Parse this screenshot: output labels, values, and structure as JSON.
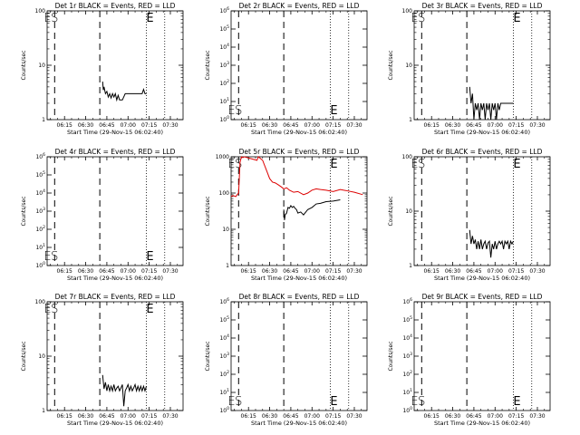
{
  "colors": {
    "events": "#000000",
    "lld": "#dd0000",
    "background": "#ffffff"
  },
  "chart_data": [
    {
      "title": "Det 1r BLACK = Events, RED = LLD",
      "type": "line",
      "scale": "log",
      "ylim": [
        1,
        100
      ],
      "ylabel": "Counts/sec",
      "xlabel": "Start Time (29-Nov-15 06:02:40)",
      "xticks": [
        "06:15",
        "06:30",
        "06:45",
        "07:00",
        "07:15",
        "07:30"
      ],
      "yticks": [
        {
          "v": 1,
          "label": "1"
        },
        {
          "v": 10,
          "label": "10"
        },
        {
          "v": 100,
          "label": "100"
        }
      ],
      "markers": [
        {
          "label": "E",
          "time": "06:03"
        },
        {
          "label": "S",
          "time": "06:08"
        }
      ],
      "end_marker": {
        "label": "E",
        "time": "07:13"
      },
      "dashed_lines": [
        "06:08",
        "06:40"
      ],
      "dotted_lines": [
        "07:13",
        "07:26"
      ],
      "series": [
        {
          "color": "black",
          "x": [
            "06:42",
            "06:42.5",
            "06:43",
            "06:44",
            "06:45",
            "06:46",
            "06:47",
            "06:48",
            "06:49",
            "06:50",
            "06:51",
            "06:52",
            "06:53",
            "06:54",
            "06:56",
            "06:58",
            "07:00",
            "07:02",
            "07:04",
            "07:06",
            "07:08",
            "07:10",
            "07:11",
            "07:12",
            "07:13"
          ],
          "y": [
            5,
            3.5,
            4,
            3,
            3.3,
            2.6,
            3,
            2.5,
            3,
            2.6,
            3,
            2.3,
            2.8,
            2.3,
            2.3,
            3,
            3,
            3,
            3,
            3,
            3,
            3,
            3.6,
            3,
            3
          ]
        }
      ]
    },
    {
      "title": "Det 2r BLACK = Events, RED = LLD",
      "type": "line",
      "scale": "log",
      "ylim": [
        1,
        1000000
      ],
      "ylabel": "Counts/sec",
      "xlabel": "Start Time (29-Nov-15 06:02:40)",
      "xticks": [
        "06:15",
        "06:30",
        "06:45",
        "07:00",
        "07:15",
        "07:30"
      ],
      "yticks": [
        {
          "v": 1,
          "label": "10^0"
        },
        {
          "v": 10,
          "label": "10^1"
        },
        {
          "v": 100,
          "label": "10^2"
        },
        {
          "v": 1000,
          "label": "10^3"
        },
        {
          "v": 10000,
          "label": "10^4"
        },
        {
          "v": 100000,
          "label": "10^5"
        },
        {
          "v": 1000000,
          "label": "10^6"
        }
      ],
      "markers": [
        {
          "label": "E",
          "time": "06:03"
        },
        {
          "label": "S",
          "time": "06:08"
        }
      ],
      "end_marker": {
        "label": "E",
        "time": "07:13"
      },
      "dashed_lines": [
        "06:08",
        "06:40"
      ],
      "dotted_lines": [
        "07:13",
        "07:26"
      ],
      "series": []
    },
    {
      "title": "Det 3r BLACK = Events, RED = LLD",
      "type": "line",
      "scale": "log",
      "ylim": [
        1,
        100
      ],
      "ylabel": "Counts/sec",
      "xlabel": "Start Time (29-Nov-15 06:02:40)",
      "xticks": [
        "06:15",
        "06:30",
        "06:45",
        "07:00",
        "07:15",
        "07:30"
      ],
      "yticks": [
        {
          "v": 1,
          "label": "1"
        },
        {
          "v": 10,
          "label": "10"
        },
        {
          "v": 100,
          "label": "100"
        }
      ],
      "markers": [
        {
          "label": "E",
          "time": "06:03"
        },
        {
          "label": "S",
          "time": "06:08"
        }
      ],
      "end_marker": {
        "label": "E",
        "time": "07:13"
      },
      "dashed_lines": [
        "06:08",
        "06:40"
      ],
      "dotted_lines": [
        "07:13",
        "07:26"
      ],
      "series": [
        {
          "color": "black",
          "x": [
            "06:42",
            "06:43",
            "06:44",
            "06:45",
            "06:46",
            "06:47",
            "06:48",
            "06:49",
            "06:50",
            "06:51",
            "06:52",
            "06:53",
            "06:54",
            "06:55",
            "06:56",
            "06:57",
            "06:58",
            "06:59",
            "07:00",
            "07:01",
            "07:02",
            "07:03",
            "07:04",
            "07:05",
            "07:06",
            "07:07",
            "07:08",
            "07:09",
            "07:10",
            "07:11",
            "07:12",
            "07:13"
          ],
          "y": [
            4,
            2,
            3,
            1,
            2,
            1.5,
            2,
            1,
            2,
            1.5,
            2,
            1,
            2,
            1.5,
            2,
            1,
            2,
            1.5,
            2,
            1,
            2,
            1.5,
            2,
            2,
            2,
            2,
            2,
            2,
            2,
            2,
            2,
            2
          ]
        }
      ]
    },
    {
      "title": "Det 4r BLACK = Events, RED = LLD",
      "type": "line",
      "scale": "log",
      "ylim": [
        1,
        1000000
      ],
      "ylabel": "Counts/sec",
      "xlabel": "Start Time (29-Nov-15 06:02:40)",
      "xticks": [
        "06:15",
        "06:30",
        "06:45",
        "07:00",
        "07:15",
        "07:30"
      ],
      "yticks": [
        {
          "v": 1,
          "label": "10^0"
        },
        {
          "v": 10,
          "label": "10^1"
        },
        {
          "v": 100,
          "label": "10^2"
        },
        {
          "v": 1000,
          "label": "10^3"
        },
        {
          "v": 10000,
          "label": "10^4"
        },
        {
          "v": 100000,
          "label": "10^5"
        },
        {
          "v": 1000000,
          "label": "10^6"
        }
      ],
      "markers": [
        {
          "label": "E",
          "time": "06:03"
        },
        {
          "label": "S",
          "time": "06:08"
        }
      ],
      "end_marker": {
        "label": "E",
        "time": "07:13"
      },
      "dashed_lines": [
        "06:08",
        "06:40"
      ],
      "dotted_lines": [
        "07:13",
        "07:26"
      ],
      "series": []
    },
    {
      "title": "Det 5r BLACK = Events, RED = LLD",
      "type": "line",
      "scale": "log",
      "ylim": [
        1,
        1000
      ],
      "ylabel": "Counts/sec",
      "xlabel": "Start Time (29-Nov-15 06:02:40)",
      "xticks": [
        "06:15",
        "06:30",
        "06:45",
        "07:00",
        "07:15",
        "07:30"
      ],
      "yticks": [
        {
          "v": 1,
          "label": "1"
        },
        {
          "v": 10,
          "label": "10"
        },
        {
          "v": 100,
          "label": "100"
        },
        {
          "v": 1000,
          "label": "1000"
        }
      ],
      "markers": [
        {
          "label": "E",
          "time": "06:03"
        },
        {
          "label": "S",
          "time": "06:08"
        }
      ],
      "end_marker": {
        "label": "E",
        "time": "07:13"
      },
      "dashed_lines": [
        "06:08",
        "06:40"
      ],
      "dotted_lines": [
        "07:13",
        "07:26"
      ],
      "series": [
        {
          "color": "red",
          "x": [
            "06:02.7",
            "06:04",
            "06:06",
            "06:07",
            "06:08",
            "06:09",
            "06:10",
            "06:11",
            "06:12",
            "06:21",
            "06:22",
            "06:25",
            "06:28",
            "06:30",
            "06:32",
            "06:34",
            "06:36",
            "06:38",
            "06:40",
            "06:42",
            "06:44",
            "06:47",
            "06:50",
            "06:54",
            "06:57",
            "07:00",
            "07:03",
            "07:06",
            "07:10",
            "07:15",
            "07:20",
            "07:25",
            "07:30",
            "07:36"
          ],
          "y": [
            80,
            85,
            80,
            90,
            100,
            700,
            1000,
            950,
            1000,
            800,
            1000,
            800,
            400,
            250,
            200,
            190,
            170,
            150,
            130,
            140,
            120,
            105,
            110,
            90,
            100,
            120,
            130,
            125,
            120,
            110,
            125,
            115,
            105,
            90
          ]
        },
        {
          "color": "black",
          "x": [
            "06:40",
            "06:40.5",
            "06:41",
            "06:42",
            "06:43",
            "06:44",
            "06:45",
            "06:46",
            "06:47",
            "06:48",
            "06:49",
            "06:50",
            "06:52",
            "06:54",
            "06:57",
            "07:00",
            "07:03",
            "07:06",
            "07:10",
            "07:15",
            "07:20"
          ],
          "y": [
            35,
            18,
            25,
            28,
            40,
            38,
            45,
            40,
            43,
            38,
            35,
            28,
            30,
            25,
            35,
            40,
            50,
            52,
            58,
            60,
            65
          ]
        }
      ]
    },
    {
      "title": "Det 6r BLACK = Events, RED = LLD",
      "type": "line",
      "scale": "log",
      "ylim": [
        1,
        100
      ],
      "ylabel": "Counts/sec",
      "xlabel": "Start Time (29-Nov-15 06:02:40)",
      "xticks": [
        "06:15",
        "06:30",
        "06:45",
        "07:00",
        "07:15",
        "07:30"
      ],
      "yticks": [
        {
          "v": 1,
          "label": "1"
        },
        {
          "v": 10,
          "label": "10"
        },
        {
          "v": 100,
          "label": "100"
        }
      ],
      "markers": [
        {
          "label": "E",
          "time": "06:03"
        },
        {
          "label": "S",
          "time": "06:08"
        }
      ],
      "end_marker": {
        "label": "E",
        "time": "07:13"
      },
      "dashed_lines": [
        "06:08",
        "06:40"
      ],
      "dotted_lines": [
        "07:13",
        "07:26"
      ],
      "series": [
        {
          "color": "black",
          "x": [
            "06:42",
            "06:43",
            "06:44",
            "06:45",
            "06:46",
            "06:47",
            "06:48",
            "06:49",
            "06:50",
            "06:51",
            "06:52",
            "06:53",
            "06:54",
            "06:55",
            "06:56",
            "06:57",
            "06:58",
            "06:59",
            "07:00",
            "07:01",
            "07:02",
            "07:03",
            "07:04",
            "07:05",
            "07:06",
            "07:07",
            "07:08",
            "07:09",
            "07:10",
            "07:11",
            "07:12",
            "07:13"
          ],
          "y": [
            4.5,
            2.5,
            3.5,
            2.5,
            3,
            2,
            2.8,
            2,
            3,
            2,
            2.5,
            2.8,
            2,
            2.6,
            2.8,
            1.4,
            2.5,
            2,
            2.8,
            2,
            2.5,
            2.8,
            2.5,
            2.8,
            2,
            2.8,
            2.5,
            2.8,
            2,
            2.8,
            2.5,
            2.8
          ]
        }
      ]
    },
    {
      "title": "Det 7r BLACK = Events, RED = LLD",
      "type": "line",
      "scale": "log",
      "ylim": [
        1,
        100
      ],
      "ylabel": "Counts/sec",
      "xlabel": "Start Time (29-Nov-15 06:02:40)",
      "xticks": [
        "06:15",
        "06:30",
        "06:45",
        "07:00",
        "07:15",
        "07:30"
      ],
      "yticks": [
        {
          "v": 1,
          "label": "1"
        },
        {
          "v": 10,
          "label": "10"
        },
        {
          "v": 100,
          "label": "100"
        }
      ],
      "markers": [
        {
          "label": "E",
          "time": "06:03"
        },
        {
          "label": "S",
          "time": "06:08"
        }
      ],
      "end_marker": {
        "label": "E",
        "time": "07:13"
      },
      "dashed_lines": [
        "06:08",
        "06:40"
      ],
      "dotted_lines": [
        "07:13",
        "07:26"
      ],
      "series": [
        {
          "color": "black",
          "x": [
            "06:42",
            "06:43",
            "06:44",
            "06:45",
            "06:46",
            "06:47",
            "06:48",
            "06:49",
            "06:50",
            "06:51",
            "06:52",
            "06:53",
            "06:54",
            "06:55",
            "06:56",
            "06:57",
            "06:58",
            "06:59",
            "07:00",
            "07:01",
            "07:02",
            "07:03",
            "07:04",
            "07:05",
            "07:06",
            "07:07",
            "07:08",
            "07:09",
            "07:10",
            "07:11",
            "07:12",
            "07:13"
          ],
          "y": [
            4.5,
            2.5,
            3.3,
            2.3,
            3,
            2.3,
            2.8,
            2.3,
            3,
            2.3,
            2.6,
            2.8,
            2.3,
            2.6,
            3,
            1.2,
            2.3,
            2.6,
            3,
            2.3,
            2.8,
            2.3,
            2.6,
            3,
            2.3,
            2.8,
            2.3,
            2.8,
            2.3,
            2.8,
            2.3,
            2.8
          ]
        }
      ]
    },
    {
      "title": "Det 8r BLACK = Events, RED = LLD",
      "type": "line",
      "scale": "log",
      "ylim": [
        1,
        1000000
      ],
      "ylabel": "Counts/sec",
      "xlabel": "Start Time (29-Nov-15 06:02:40)",
      "xticks": [
        "06:15",
        "06:30",
        "06:45",
        "07:00",
        "07:15",
        "07:30"
      ],
      "yticks": [
        {
          "v": 1,
          "label": "10^0"
        },
        {
          "v": 10,
          "label": "10^1"
        },
        {
          "v": 100,
          "label": "10^2"
        },
        {
          "v": 1000,
          "label": "10^3"
        },
        {
          "v": 10000,
          "label": "10^4"
        },
        {
          "v": 100000,
          "label": "10^5"
        },
        {
          "v": 1000000,
          "label": "10^6"
        }
      ],
      "markers": [
        {
          "label": "E",
          "time": "06:03"
        },
        {
          "label": "S",
          "time": "06:08"
        }
      ],
      "end_marker": {
        "label": "E",
        "time": "07:13"
      },
      "dashed_lines": [
        "06:08",
        "06:40"
      ],
      "dotted_lines": [
        "07:13",
        "07:26"
      ],
      "series": []
    },
    {
      "title": "Det 9r BLACK = Events, RED = LLD",
      "type": "line",
      "scale": "log",
      "ylim": [
        1,
        1000000
      ],
      "ylabel": "Counts/sec",
      "xlabel": "Start Time (29-Nov-15 06:02:40)",
      "xticks": [
        "06:15",
        "06:30",
        "06:45",
        "07:00",
        "07:15",
        "07:30"
      ],
      "yticks": [
        {
          "v": 1,
          "label": "10^0"
        },
        {
          "v": 10,
          "label": "10^1"
        },
        {
          "v": 100,
          "label": "10^2"
        },
        {
          "v": 1000,
          "label": "10^3"
        },
        {
          "v": 10000,
          "label": "10^4"
        },
        {
          "v": 100000,
          "label": "10^5"
        },
        {
          "v": 1000000,
          "label": "10^6"
        }
      ],
      "markers": [
        {
          "label": "E",
          "time": "06:03"
        },
        {
          "label": "S",
          "time": "06:08"
        }
      ],
      "end_marker": {
        "label": "E",
        "time": "07:13"
      },
      "dashed_lines": [
        "06:08",
        "06:40"
      ],
      "dotted_lines": [
        "07:13",
        "07:26"
      ],
      "series": []
    }
  ]
}
